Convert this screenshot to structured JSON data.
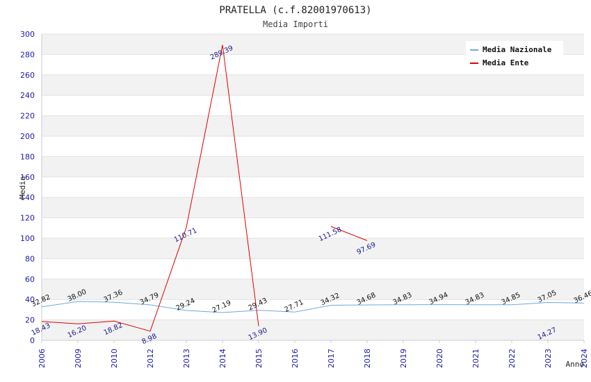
{
  "chart_data": {
    "type": "line",
    "title": "PRATELLA (c.f.82001970613)",
    "subtitle": "Media Importi",
    "xlabel": "Anno",
    "ylabel": "Media",
    "ylim": [
      0,
      300
    ],
    "yticks": [
      0,
      20,
      40,
      60,
      80,
      100,
      120,
      140,
      160,
      180,
      200,
      220,
      240,
      260,
      280,
      300
    ],
    "categories": [
      "2006",
      "2009",
      "2010",
      "2012",
      "2013",
      "2014",
      "2015",
      "2016",
      "2017",
      "2018",
      "2019",
      "2020",
      "2021",
      "2022",
      "2023",
      "2024"
    ],
    "legend_position": "top-right",
    "series": [
      {
        "name": "Media Nazionale",
        "color": "#6fa8dc",
        "values": [
          32.82,
          38.0,
          37.36,
          34.79,
          29.24,
          27.19,
          29.43,
          27.71,
          34.32,
          34.68,
          34.83,
          34.94,
          34.83,
          34.85,
          37.05,
          36.46
        ],
        "labels": [
          "32.82",
          "38.00",
          "37.36",
          "34.79",
          "29.24",
          "27.19",
          "29.43",
          "27.71",
          "34.32",
          "34.68",
          "34.83",
          "34.94",
          "34.83",
          "34.85",
          "37.05",
          "36.46"
        ]
      },
      {
        "name": "Media Ente",
        "color": "#e00000",
        "values": [
          18.43,
          16.2,
          18.82,
          8.98,
          110.71,
          289.39,
          13.9,
          null,
          111.58,
          97.69,
          null,
          null,
          null,
          null,
          14.27,
          null
        ],
        "labels": [
          "18.43",
          "16.20",
          "18.82",
          "8.98",
          "110.71",
          "289.39",
          "13.90",
          "",
          "111.58",
          "97.69",
          "",
          "",
          "",
          "",
          "14.27",
          ""
        ]
      }
    ]
  }
}
